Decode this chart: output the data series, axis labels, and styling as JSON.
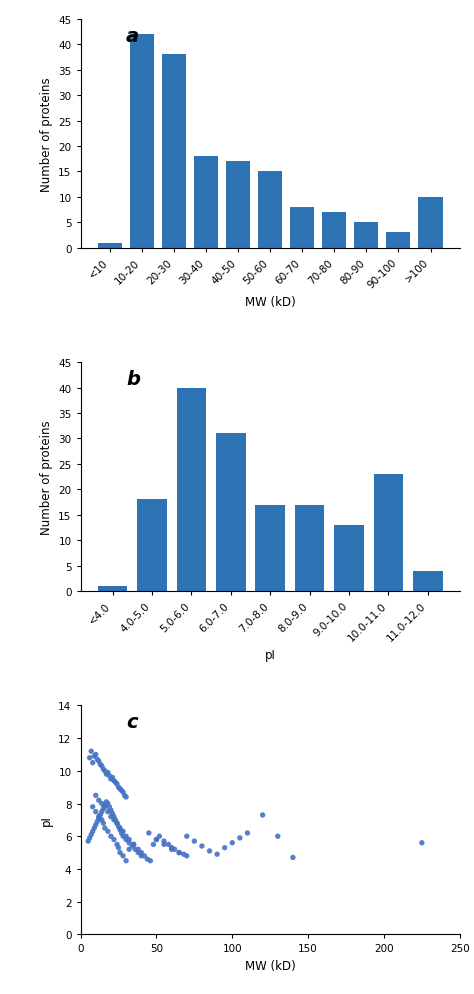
{
  "bar_color": "#2E74B5",
  "chart_a": {
    "categories": [
      "<10",
      "10-20",
      "20-30",
      "30-40",
      "40-50",
      "50-60",
      "60-70",
      "70-80",
      "80-90",
      "90-100",
      ">100"
    ],
    "values": [
      1,
      42,
      38,
      18,
      17,
      15,
      8,
      7,
      5,
      3,
      10
    ],
    "ylabel": "Number of proteins",
    "xlabel": "MW (kD)",
    "ylim": [
      0,
      45
    ],
    "yticks": [
      0,
      5,
      10,
      15,
      20,
      25,
      30,
      35,
      40,
      45
    ],
    "label": "a"
  },
  "chart_b": {
    "categories": [
      "<4.0",
      "4.0-5.0",
      "5.0-6.0",
      "6.0-7.0",
      "7.0-8.0",
      "8.0-9.0",
      "9.0-10.0",
      "10.0-11.0",
      "11.0-12.0"
    ],
    "values": [
      1,
      18,
      40,
      31,
      17,
      17,
      13,
      23,
      4
    ],
    "ylabel": "Number of proteins",
    "xlabel": "pI",
    "ylim": [
      0,
      45
    ],
    "yticks": [
      0,
      5,
      10,
      15,
      20,
      25,
      30,
      35,
      40,
      45
    ],
    "label": "b"
  },
  "chart_c": {
    "scatter_mw": [
      6,
      7,
      8,
      9,
      10,
      11,
      12,
      13,
      14,
      15,
      16,
      17,
      18,
      19,
      20,
      21,
      22,
      23,
      24,
      25,
      26,
      27,
      28,
      29,
      30,
      8,
      10,
      12,
      14,
      15,
      16,
      18,
      20,
      22,
      24,
      25,
      26,
      28,
      30,
      32,
      35,
      5,
      6,
      7,
      8,
      9,
      10,
      11,
      12,
      13,
      14,
      15,
      16,
      17,
      18,
      19,
      20,
      21,
      22,
      23,
      24,
      25,
      26,
      27,
      28,
      30,
      32,
      34,
      36,
      38,
      40,
      10,
      12,
      14,
      16,
      18,
      20,
      22,
      24,
      26,
      28,
      30,
      32,
      35,
      38,
      40,
      42,
      44,
      46,
      48,
      50,
      52,
      55,
      58,
      60,
      62,
      65,
      68,
      70,
      45,
      50,
      55,
      60,
      65,
      70,
      75,
      80,
      85,
      90,
      95,
      100,
      105,
      110,
      120,
      130,
      140,
      225
    ],
    "scatter_pi": [
      10.8,
      11.2,
      10.5,
      10.9,
      11.0,
      10.7,
      10.6,
      10.4,
      10.3,
      10.1,
      10.0,
      9.8,
      9.9,
      9.7,
      9.5,
      9.6,
      9.4,
      9.3,
      9.2,
      9.0,
      8.9,
      8.8,
      8.7,
      8.5,
      8.4,
      7.8,
      7.5,
      7.2,
      7.0,
      6.8,
      6.5,
      6.3,
      6.0,
      5.8,
      5.5,
      5.3,
      5.0,
      4.8,
      4.5,
      5.2,
      5.5,
      5.7,
      5.9,
      6.1,
      6.3,
      6.5,
      6.7,
      6.9,
      7.1,
      7.3,
      7.5,
      7.7,
      7.9,
      8.1,
      8.0,
      7.8,
      7.6,
      7.4,
      7.2,
      7.0,
      6.8,
      6.6,
      6.4,
      6.2,
      6.0,
      5.8,
      5.6,
      5.4,
      5.2,
      5.0,
      4.8,
      8.5,
      8.2,
      8.0,
      7.8,
      7.5,
      7.2,
      7.0,
      6.8,
      6.5,
      6.3,
      6.0,
      5.8,
      5.5,
      5.2,
      5.0,
      4.8,
      4.6,
      4.5,
      5.5,
      5.8,
      6.0,
      5.7,
      5.5,
      5.3,
      5.2,
      5.0,
      4.9,
      4.8,
      6.2,
      5.8,
      5.5,
      5.2,
      5.0,
      6.0,
      5.7,
      5.4,
      5.1,
      4.9,
      5.3,
      5.6,
      5.9,
      6.2,
      7.3,
      6.0,
      4.7,
      5.6
    ],
    "ylabel": "pI",
    "xlabel": "MW (kD)",
    "xlim": [
      0,
      250
    ],
    "ylim": [
      0,
      14
    ],
    "xticks": [
      0,
      50,
      100,
      150,
      200,
      250
    ],
    "yticks": [
      0,
      2,
      4,
      6,
      8,
      10,
      12,
      14
    ],
    "label": "c",
    "dot_color": "#4472C4",
    "dot_size": 15
  },
  "fig_background": "#ffffff"
}
